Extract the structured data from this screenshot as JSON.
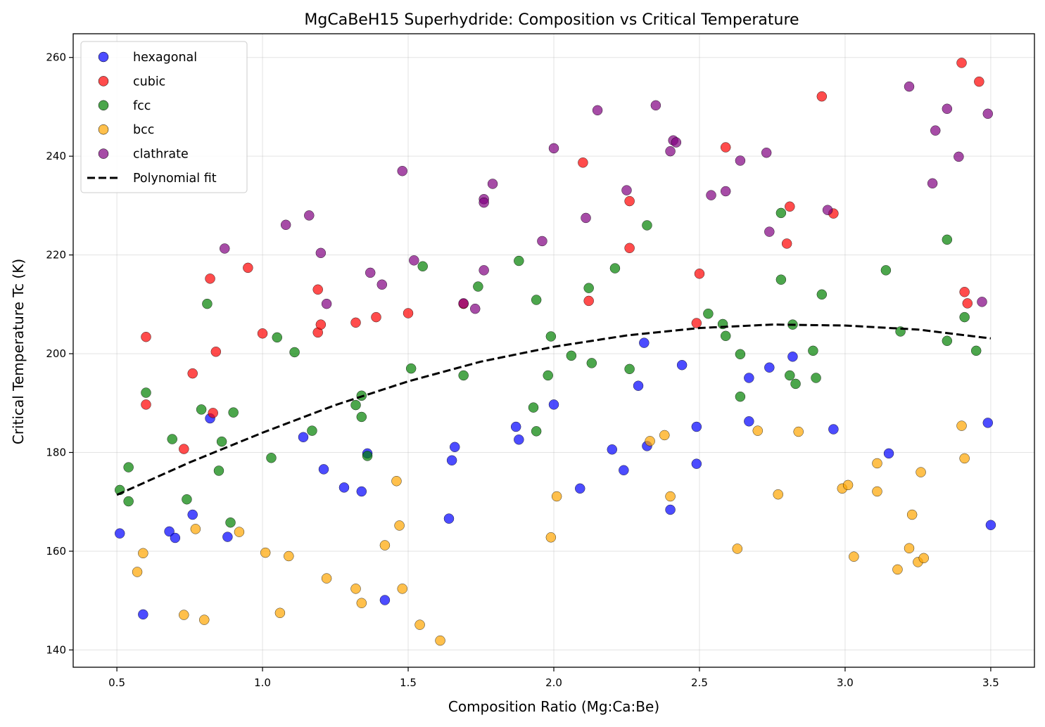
{
  "chart_data": {
    "type": "scatter",
    "title": "MgCaBeH15 Superhydride: Composition vs Critical Temperature",
    "xlabel": "Composition Ratio (Mg:Ca:Be)",
    "ylabel": "Critical Temperature Tc (K)",
    "xlim": [
      0.35,
      3.65
    ],
    "ylim": [
      136.5,
      264.8
    ],
    "xticks": [
      0.5,
      1.0,
      1.5,
      2.0,
      2.5,
      3.0,
      3.5
    ],
    "xtick_labels": [
      "0.5",
      "1.0",
      "1.5",
      "2.0",
      "2.5",
      "3.0",
      "3.5"
    ],
    "yticks": [
      140,
      160,
      180,
      200,
      220,
      240,
      260
    ],
    "ytick_labels": [
      "140",
      "160",
      "180",
      "200",
      "220",
      "240",
      "260"
    ],
    "grid": true,
    "legend_position": "top-left",
    "series": [
      {
        "name": "hexagonal",
        "color": "#0000ff",
        "points": [
          [
            0.51,
            163.6
          ],
          [
            0.59,
            147.2
          ],
          [
            0.68,
            164.0
          ],
          [
            0.7,
            162.7
          ],
          [
            0.76,
            167.4
          ],
          [
            0.82,
            186.9
          ],
          [
            0.88,
            162.9
          ],
          [
            1.14,
            183.1
          ],
          [
            1.21,
            176.6
          ],
          [
            1.28,
            172.9
          ],
          [
            1.34,
            172.1
          ],
          [
            1.36,
            179.8
          ],
          [
            1.42,
            150.1
          ],
          [
            1.64,
            166.6
          ],
          [
            1.65,
            178.4
          ],
          [
            1.66,
            181.1
          ],
          [
            1.87,
            185.2
          ],
          [
            1.88,
            182.6
          ],
          [
            2.0,
            189.7
          ],
          [
            2.09,
            172.7
          ],
          [
            2.2,
            180.6
          ],
          [
            2.24,
            176.4
          ],
          [
            2.29,
            193.5
          ],
          [
            2.31,
            202.2
          ],
          [
            2.32,
            181.3
          ],
          [
            2.4,
            168.4
          ],
          [
            2.44,
            197.7
          ],
          [
            2.49,
            185.2
          ],
          [
            2.49,
            177.7
          ],
          [
            2.67,
            186.3
          ],
          [
            2.67,
            195.1
          ],
          [
            2.74,
            197.2
          ],
          [
            2.82,
            199.4
          ],
          [
            2.96,
            184.7
          ],
          [
            3.15,
            179.8
          ],
          [
            3.49,
            186.0
          ],
          [
            3.5,
            165.3
          ]
        ]
      },
      {
        "name": "cubic",
        "color": "#ff0000",
        "points": [
          [
            0.6,
            203.4
          ],
          [
            0.6,
            189.7
          ],
          [
            0.73,
            180.7
          ],
          [
            0.76,
            196.0
          ],
          [
            0.82,
            215.2
          ],
          [
            0.83,
            188.0
          ],
          [
            0.84,
            200.4
          ],
          [
            0.95,
            217.4
          ],
          [
            1.0,
            204.1
          ],
          [
            1.19,
            204.3
          ],
          [
            1.19,
            213.0
          ],
          [
            1.2,
            205.9
          ],
          [
            1.32,
            206.3
          ],
          [
            1.39,
            207.4
          ],
          [
            1.5,
            208.2
          ],
          [
            1.69,
            210.1
          ],
          [
            2.1,
            238.7
          ],
          [
            2.12,
            210.7
          ],
          [
            2.26,
            221.4
          ],
          [
            2.26,
            230.9
          ],
          [
            2.49,
            206.2
          ],
          [
            2.5,
            216.2
          ],
          [
            2.59,
            241.8
          ],
          [
            2.8,
            222.3
          ],
          [
            2.81,
            229.8
          ],
          [
            2.92,
            252.1
          ],
          [
            2.96,
            228.4
          ],
          [
            3.4,
            258.9
          ],
          [
            3.41,
            212.5
          ],
          [
            3.42,
            210.2
          ],
          [
            3.46,
            255.1
          ]
        ]
      },
      {
        "name": "fcc",
        "color": "#008000",
        "points": [
          [
            0.51,
            172.4
          ],
          [
            0.54,
            170.1
          ],
          [
            0.54,
            177.0
          ],
          [
            0.6,
            192.1
          ],
          [
            0.69,
            182.7
          ],
          [
            0.74,
            170.5
          ],
          [
            0.79,
            188.7
          ],
          [
            0.81,
            210.1
          ],
          [
            0.85,
            176.3
          ],
          [
            0.86,
            182.2
          ],
          [
            0.89,
            165.8
          ],
          [
            0.9,
            188.1
          ],
          [
            1.03,
            178.9
          ],
          [
            1.05,
            203.3
          ],
          [
            1.11,
            200.3
          ],
          [
            1.17,
            184.4
          ],
          [
            1.32,
            189.6
          ],
          [
            1.34,
            187.2
          ],
          [
            1.34,
            191.5
          ],
          [
            1.36,
            179.3
          ],
          [
            1.51,
            197.0
          ],
          [
            1.55,
            217.7
          ],
          [
            1.69,
            195.6
          ],
          [
            1.74,
            213.6
          ],
          [
            1.88,
            218.8
          ],
          [
            1.93,
            189.1
          ],
          [
            1.94,
            184.3
          ],
          [
            1.94,
            210.9
          ],
          [
            1.98,
            195.6
          ],
          [
            1.99,
            203.5
          ],
          [
            2.06,
            199.6
          ],
          [
            2.12,
            213.3
          ],
          [
            2.13,
            198.1
          ],
          [
            2.21,
            217.3
          ],
          [
            2.26,
            196.9
          ],
          [
            2.32,
            226.0
          ],
          [
            2.53,
            208.1
          ],
          [
            2.58,
            206.0
          ],
          [
            2.59,
            203.6
          ],
          [
            2.64,
            199.9
          ],
          [
            2.64,
            191.3
          ],
          [
            2.78,
            228.5
          ],
          [
            2.78,
            215.0
          ],
          [
            2.81,
            195.6
          ],
          [
            2.82,
            205.9
          ],
          [
            2.83,
            193.9
          ],
          [
            2.89,
            200.6
          ],
          [
            2.9,
            195.1
          ],
          [
            2.92,
            212.0
          ],
          [
            3.14,
            216.9
          ],
          [
            3.19,
            204.5
          ],
          [
            3.35,
            223.1
          ],
          [
            3.35,
            202.6
          ],
          [
            3.41,
            207.4
          ],
          [
            3.45,
            200.6
          ]
        ]
      },
      {
        "name": "bcc",
        "color": "#ffa500",
        "points": [
          [
            0.57,
            155.8
          ],
          [
            0.59,
            159.6
          ],
          [
            0.73,
            147.1
          ],
          [
            0.77,
            164.5
          ],
          [
            0.8,
            146.1
          ],
          [
            0.92,
            163.9
          ],
          [
            1.01,
            159.7
          ],
          [
            1.06,
            147.5
          ],
          [
            1.09,
            159.0
          ],
          [
            1.22,
            154.5
          ],
          [
            1.32,
            152.4
          ],
          [
            1.34,
            149.5
          ],
          [
            1.42,
            161.2
          ],
          [
            1.46,
            174.2
          ],
          [
            1.47,
            165.2
          ],
          [
            1.48,
            152.4
          ],
          [
            1.54,
            145.1
          ],
          [
            1.61,
            141.9
          ],
          [
            1.99,
            162.8
          ],
          [
            2.01,
            171.1
          ],
          [
            2.33,
            182.3
          ],
          [
            2.38,
            183.5
          ],
          [
            2.4,
            171.1
          ],
          [
            2.63,
            160.5
          ],
          [
            2.7,
            184.4
          ],
          [
            2.77,
            171.5
          ],
          [
            2.84,
            184.2
          ],
          [
            2.99,
            172.7
          ],
          [
            3.01,
            173.4
          ],
          [
            3.03,
            158.9
          ],
          [
            3.11,
            177.8
          ],
          [
            3.11,
            172.1
          ],
          [
            3.18,
            156.3
          ],
          [
            3.22,
            160.6
          ],
          [
            3.23,
            167.4
          ],
          [
            3.25,
            157.8
          ],
          [
            3.26,
            176.0
          ],
          [
            3.27,
            158.6
          ],
          [
            3.4,
            185.4
          ],
          [
            3.41,
            178.8
          ]
        ]
      },
      {
        "name": "clathrate",
        "color": "#800080",
        "points": [
          [
            0.87,
            221.3
          ],
          [
            1.08,
            226.1
          ],
          [
            1.16,
            228.0
          ],
          [
            1.2,
            220.4
          ],
          [
            1.22,
            210.1
          ],
          [
            1.37,
            216.4
          ],
          [
            1.41,
            214.0
          ],
          [
            1.48,
            237.0
          ],
          [
            1.52,
            218.9
          ],
          [
            1.69,
            210.2
          ],
          [
            1.73,
            209.1
          ],
          [
            1.76,
            231.3
          ],
          [
            1.76,
            230.6
          ],
          [
            1.76,
            216.9
          ],
          [
            1.79,
            234.4
          ],
          [
            1.96,
            222.8
          ],
          [
            2.0,
            241.6
          ],
          [
            2.11,
            227.5
          ],
          [
            2.15,
            249.3
          ],
          [
            2.25,
            233.1
          ],
          [
            2.35,
            250.3
          ],
          [
            2.4,
            241.0
          ],
          [
            2.41,
            243.2
          ],
          [
            2.42,
            242.8
          ],
          [
            2.54,
            232.1
          ],
          [
            2.59,
            232.9
          ],
          [
            2.64,
            239.1
          ],
          [
            2.73,
            240.7
          ],
          [
            2.74,
            224.7
          ],
          [
            2.94,
            229.1
          ],
          [
            3.22,
            254.1
          ],
          [
            3.3,
            234.5
          ],
          [
            3.31,
            245.2
          ],
          [
            3.35,
            249.6
          ],
          [
            3.39,
            239.9
          ],
          [
            3.47,
            210.5
          ],
          [
            3.49,
            248.6
          ]
        ]
      }
    ],
    "fit": {
      "name": "Polynomial fit",
      "type": "quadratic",
      "color": "#000000",
      "style": "dashed",
      "x_range": [
        0.5,
        3.5
      ],
      "samples": [
        [
          0.5,
          171.4
        ],
        [
          0.75,
          178.0
        ],
        [
          1.0,
          184.0
        ],
        [
          1.25,
          189.6
        ],
        [
          1.5,
          194.4
        ],
        [
          1.75,
          198.4
        ],
        [
          2.0,
          201.4
        ],
        [
          2.25,
          203.7
        ],
        [
          2.5,
          205.2
        ],
        [
          2.75,
          205.9
        ],
        [
          3.0,
          205.7
        ],
        [
          3.25,
          204.9
        ],
        [
          3.5,
          203.1
        ]
      ]
    }
  }
}
